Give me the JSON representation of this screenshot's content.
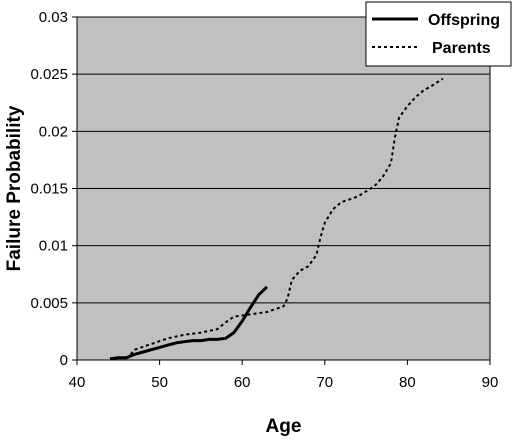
{
  "chart_data": {
    "type": "line",
    "title": "",
    "xlabel": "Age",
    "ylabel": "Failure Probability",
    "xlim": [
      40,
      90
    ],
    "ylim": [
      0,
      0.03
    ],
    "x_ticks": [
      "40",
      "50",
      "60",
      "70",
      "80",
      "90"
    ],
    "y_ticks": [
      "0",
      "0.005",
      "0.01",
      "0.015",
      "0.02",
      "0.025",
      "0.03"
    ],
    "grid": "horizontal",
    "plot_background": "#c0c0c0",
    "legend_position": "top-right",
    "series": [
      {
        "name": "Offspring",
        "style": "solid",
        "color": "#000000",
        "points": [
          [
            44,
            0.0001
          ],
          [
            45,
            0.0002
          ],
          [
            46,
            0.0002
          ],
          [
            47,
            0.0005
          ],
          [
            48,
            0.0007
          ],
          [
            49,
            0.0009
          ],
          [
            50,
            0.0011
          ],
          [
            51,
            0.0013
          ],
          [
            52,
            0.0015
          ],
          [
            53,
            0.0016
          ],
          [
            54,
            0.0017
          ],
          [
            55,
            0.0017
          ],
          [
            56,
            0.0018
          ],
          [
            57,
            0.0018
          ],
          [
            58,
            0.0019
          ],
          [
            59,
            0.0024
          ],
          [
            60,
            0.0034
          ],
          [
            61,
            0.0046
          ],
          [
            62,
            0.0057
          ],
          [
            63,
            0.0064
          ]
        ]
      },
      {
        "name": "Parents",
        "style": "dashed",
        "color": "#000000",
        "points": [
          [
            46.5,
            0.0005
          ],
          [
            47,
            0.0009
          ],
          [
            49,
            0.0014
          ],
          [
            51,
            0.0019
          ],
          [
            53,
            0.0022
          ],
          [
            55,
            0.0024
          ],
          [
            57,
            0.0027
          ],
          [
            58,
            0.0033
          ],
          [
            59,
            0.0038
          ],
          [
            61,
            0.004
          ],
          [
            63,
            0.0042
          ],
          [
            65,
            0.0047
          ],
          [
            65.5,
            0.0054
          ],
          [
            66,
            0.007
          ],
          [
            67,
            0.0078
          ],
          [
            68,
            0.0082
          ],
          [
            69,
            0.0092
          ],
          [
            69.5,
            0.0108
          ],
          [
            70,
            0.012
          ],
          [
            71,
            0.0132
          ],
          [
            72,
            0.0138
          ],
          [
            74,
            0.0143
          ],
          [
            76,
            0.0152
          ],
          [
            77,
            0.016
          ],
          [
            78,
            0.0172
          ],
          [
            78.5,
            0.0195
          ],
          [
            79,
            0.0212
          ],
          [
            80,
            0.0222
          ],
          [
            81,
            0.023
          ],
          [
            82,
            0.0236
          ],
          [
            83,
            0.024
          ],
          [
            84.3,
            0.0246
          ]
        ]
      }
    ]
  }
}
